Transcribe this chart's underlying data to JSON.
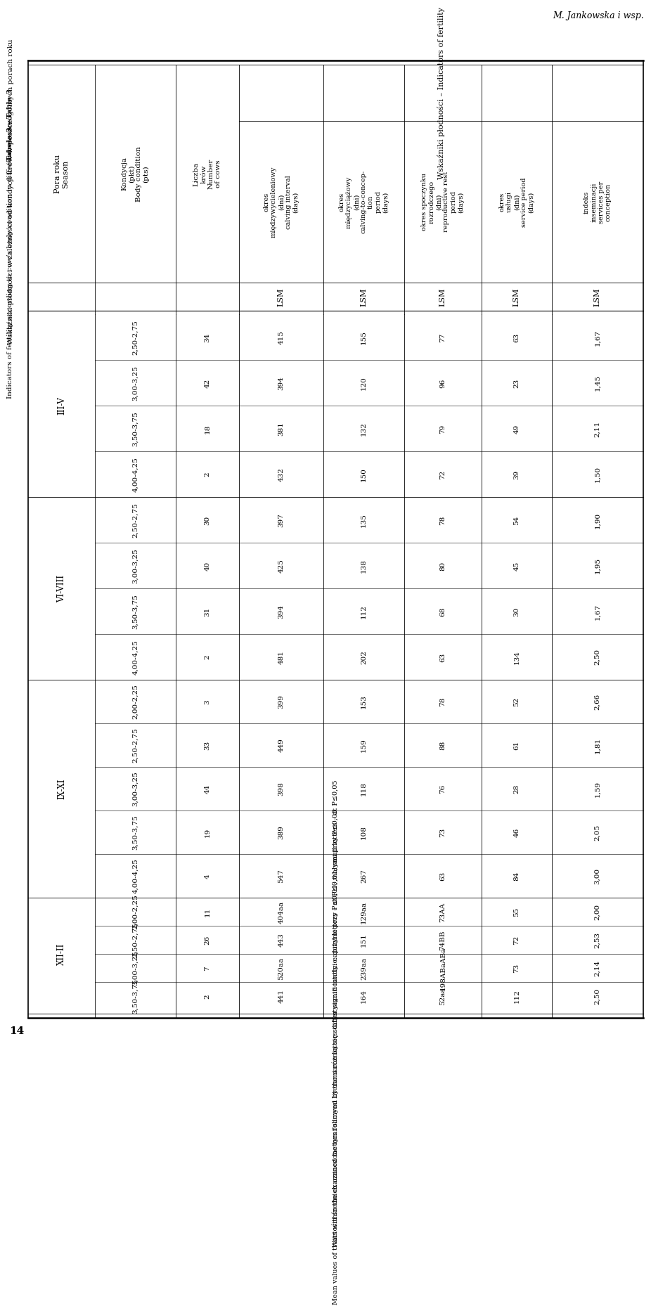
{
  "header_author": "M. Jankowska i wsp.",
  "title_pl": "Tabela 3 – Table 3",
  "subtitle_pl": "Wskaźniki płodności w zależności od kondycji krów w poszczególnych porach roku",
  "subtitle_en": "Indicators of fertility according to cow’s body condition in different seasons",
  "seasons": [
    "III-V",
    "VI-VIII",
    "IX-XI",
    "XII-II"
  ],
  "body_conditions": [
    [
      "2,50-2,75",
      "3,00-3,25",
      "3,50-3,75",
      "4,00-4,25"
    ],
    [
      "2,50-2,75",
      "3,00-3,25",
      "3,50-3,75",
      "4,00-4,25"
    ],
    [
      "2,00-2,25",
      "2,50-2,75",
      "3,00-3,25",
      "3,50-3,75",
      "4,00-4,25"
    ],
    [
      "2,00-2,25",
      "2,50-2,75",
      "3,00-3,25",
      "3,50-3,75"
    ]
  ],
  "num_cows": [
    [
      34,
      42,
      18,
      2
    ],
    [
      30,
      40,
      31,
      2
    ],
    [
      3,
      33,
      44,
      19,
      4
    ],
    [
      11,
      26,
      7,
      2
    ]
  ],
  "calving_interval": [
    [
      "415",
      "394",
      "381",
      "432"
    ],
    [
      "397",
      "425",
      "394",
      "481"
    ],
    [
      "399",
      "449",
      "398",
      "389",
      "547"
    ],
    [
      "404a",
      "443",
      "520a",
      "441"
    ]
  ],
  "calving_to_conception": [
    [
      "155",
      "120",
      "132",
      "150"
    ],
    [
      "135",
      "138",
      "112",
      "202"
    ],
    [
      "153",
      "159",
      "118",
      "108",
      "267"
    ],
    [
      "129a",
      "151",
      "239a",
      "164"
    ]
  ],
  "repro_rest": [
    [
      "77",
      "96",
      "79",
      "72"
    ],
    [
      "78",
      "80",
      "68",
      "63"
    ],
    [
      "78",
      "88",
      "76",
      "73",
      "63"
    ],
    [
      "73A",
      "74B",
      "198ABa",
      "52a"
    ]
  ],
  "service_period": [
    [
      "63",
      "23",
      "49",
      "39"
    ],
    [
      "54",
      "45",
      "30",
      "134"
    ],
    [
      "52",
      "61",
      "28",
      "46",
      "84"
    ],
    [
      "55",
      "72",
      "73",
      "112"
    ]
  ],
  "insemination_index": [
    [
      "1,67",
      "1,45",
      "2,11",
      "1,50"
    ],
    [
      "1,90",
      "1,95",
      "1,67",
      "2,50"
    ],
    [
      "2,66",
      "1,81",
      "1,59",
      "2,05",
      "3,00"
    ],
    [
      "2,00",
      "2,53",
      "2,14",
      "2,50"
    ]
  ],
  "calving_interval_sup": [
    [
      "",
      "",
      "",
      ""
    ],
    [
      "",
      "",
      "",
      ""
    ],
    [
      "",
      "",
      "",
      "",
      ""
    ],
    [
      "a",
      "",
      "a",
      ""
    ]
  ],
  "calving_to_conception_sup": [
    [
      "",
      "",
      "",
      ""
    ],
    [
      "",
      "",
      "",
      ""
    ],
    [
      "",
      "",
      "",
      "",
      ""
    ],
    [
      "a",
      "",
      "a",
      ""
    ]
  ],
  "repro_rest_sup": [
    [
      "",
      "",
      "",
      ""
    ],
    [
      "",
      "",
      "",
      ""
    ],
    [
      "",
      "",
      "",
      "",
      ""
    ],
    [
      "A",
      "B",
      "ABa",
      "a"
    ]
  ],
  "footnote1": "Wartości średnich oznaczone tymi samymi literami różnią się statystycznie istotnie: dużymi przy P≤0,01; małymi przy P≤0,05",
  "footnote2": "Mean values of traits within the examined factors followed by the same letters differ significantly: capital letters – at P≤0,01; small letters – at P≤0,05",
  "page_number": "14"
}
